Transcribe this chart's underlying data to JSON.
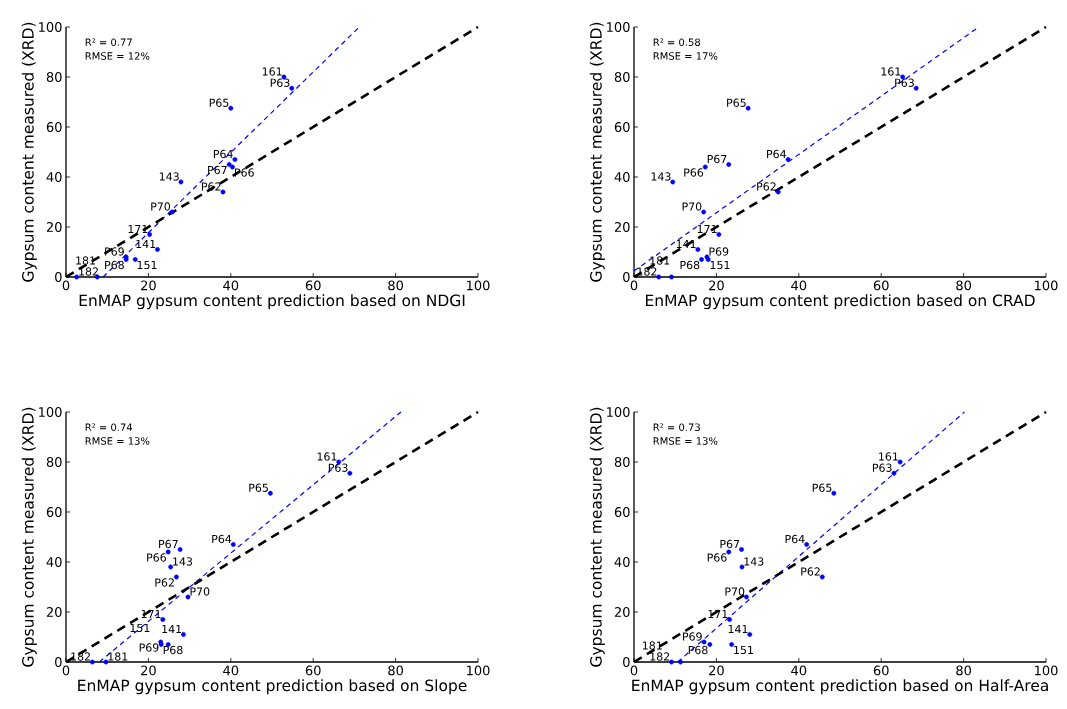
{
  "chart_data": [
    {
      "type": "scatter",
      "xlabel": "EnMAP gypsum content prediction based on NDGI",
      "ylabel": "Gypsum content measured (XRD)",
      "xlim": [
        0,
        100
      ],
      "ylim": [
        0,
        100
      ],
      "xticks": [
        0,
        20,
        40,
        60,
        80,
        100
      ],
      "yticks": [
        0,
        20,
        40,
        60,
        80,
        100
      ],
      "series": [
        {
          "type": "scatter",
          "marker": "circle",
          "color": "#0000ff",
          "x": [
            52.9,
            54.8,
            40,
            41,
            39.6,
            40.4,
            27.9,
            38.1,
            25.8,
            20.3,
            22.2,
            14.6,
            14.6,
            16.8,
            2.6,
            7.6
          ],
          "values": [
            80,
            75.5,
            67.5,
            47,
            45,
            44,
            38,
            34,
            26,
            17,
            11,
            8,
            7,
            7,
            0,
            0
          ]
        },
        {
          "type": "line",
          "line_style": "dashed",
          "color": "#0000ff",
          "x": [
            9,
            71.2
          ],
          "values": [
            0,
            100
          ]
        },
        {
          "type": "line",
          "line_style": "dashed",
          "color": "#000000",
          "x": [
            0,
            100
          ],
          "values": [
            0,
            100
          ]
        }
      ],
      "annotations": [
        "R² = 0.77",
        "RMSE = 12%",
        {
          "text": "161",
          "x": 52.9,
          "y": 80
        },
        {
          "text": "P63",
          "x": 54.8,
          "y": 75.5
        },
        {
          "text": "P65",
          "x": 40,
          "y": 67.5
        },
        {
          "text": "P64",
          "x": 41,
          "y": 47
        },
        {
          "text": "P67",
          "x": 39.6,
          "y": 45
        },
        {
          "text": "P66",
          "x": 40.4,
          "y": 44
        },
        {
          "text": "143",
          "x": 27.9,
          "y": 38
        },
        {
          "text": "P62",
          "x": 38.1,
          "y": 34
        },
        {
          "text": "P70",
          "x": 25.8,
          "y": 26
        },
        {
          "text": "171",
          "x": 20.3,
          "y": 17
        },
        {
          "text": "141",
          "x": 22.2,
          "y": 11
        },
        {
          "text": "P69",
          "x": 14.6,
          "y": 8
        },
        {
          "text": "P68",
          "x": 14.6,
          "y": 7
        },
        {
          "text": "151",
          "x": 16.8,
          "y": 7
        },
        {
          "text": "182",
          "x": 2.6,
          "y": 0
        },
        {
          "text": "181",
          "x": 7.6,
          "y": 0
        }
      ]
    },
    {
      "type": "scatter",
      "xlabel": "EnMAP gypsum content prediction based on CRAD",
      "ylabel": "Gypsum content measured (XRD)",
      "xlim": [
        0,
        100
      ],
      "ylim": [
        0,
        100
      ],
      "xticks": [
        0,
        20,
        40,
        60,
        80,
        100
      ],
      "yticks": [
        0,
        20,
        40,
        60,
        80,
        100
      ],
      "series": [
        {
          "type": "scatter",
          "marker": "circle",
          "color": "#0000ff",
          "x": [
            65.2,
            68.5,
            27.7,
            37.4,
            23,
            17.3,
            9.4,
            35,
            16.9,
            20.6,
            15.5,
            17.7,
            16.4,
            18,
            6,
            9.1
          ],
          "values": [
            80,
            75.5,
            67.5,
            47,
            45,
            44,
            38,
            34,
            26,
            17,
            11,
            8,
            7,
            7,
            0,
            0
          ]
        },
        {
          "type": "line",
          "line_style": "dashed",
          "color": "#0000ff",
          "x": [
            0,
            83.7
          ],
          "values": [
            2.4,
            100
          ]
        },
        {
          "type": "line",
          "line_style": "dashed",
          "color": "#000000",
          "x": [
            0,
            100
          ],
          "values": [
            0,
            100
          ]
        }
      ],
      "annotations": [
        "R² = 0.58",
        "RMSE = 17%",
        {
          "text": "161",
          "x": 65.2,
          "y": 80
        },
        {
          "text": "P63",
          "x": 68.5,
          "y": 75.5
        },
        {
          "text": "P65",
          "x": 27.7,
          "y": 67.5
        },
        {
          "text": "P64",
          "x": 37.4,
          "y": 47
        },
        {
          "text": "P67",
          "x": 23,
          "y": 45
        },
        {
          "text": "P66",
          "x": 17.3,
          "y": 44
        },
        {
          "text": "143",
          "x": 9.4,
          "y": 38
        },
        {
          "text": "P62",
          "x": 35,
          "y": 34
        },
        {
          "text": "P70",
          "x": 16.9,
          "y": 26
        },
        {
          "text": "171",
          "x": 20.6,
          "y": 17
        },
        {
          "text": "141",
          "x": 15.5,
          "y": 11
        },
        {
          "text": "P69",
          "x": 17.7,
          "y": 8
        },
        {
          "text": "P68",
          "x": 16.4,
          "y": 7
        },
        {
          "text": "151",
          "x": 18,
          "y": 7
        },
        {
          "text": "182",
          "x": 6,
          "y": 0
        },
        {
          "text": "181",
          "x": 9.1,
          "y": 0
        }
      ]
    },
    {
      "type": "scatter",
      "xlabel": "EnMAP gypsum content prediction based on Slope",
      "ylabel": "Gypsum content measured (XRD)",
      "xlim": [
        0,
        100
      ],
      "ylim": [
        0,
        100
      ],
      "xticks": [
        0,
        20,
        40,
        60,
        80,
        100
      ],
      "yticks": [
        0,
        20,
        40,
        60,
        80,
        100
      ],
      "series": [
        {
          "type": "scatter",
          "marker": "circle",
          "color": "#0000ff",
          "x": [
            66.2,
            68.9,
            49.6,
            40.6,
            27.7,
            24.8,
            25.4,
            26.8,
            29.6,
            23.5,
            28.5,
            23,
            23.1,
            24.8,
            6.4,
            9.7
          ],
          "values": [
            80,
            75.5,
            67.5,
            47,
            45,
            44,
            38,
            34,
            26,
            17,
            11,
            8,
            7,
            7,
            0,
            0
          ]
        },
        {
          "type": "line",
          "line_style": "dashed",
          "color": "#0000ff",
          "x": [
            8.1,
            81.3
          ],
          "values": [
            0,
            100
          ]
        },
        {
          "type": "line",
          "line_style": "dashed",
          "color": "#000000",
          "x": [
            0,
            100
          ],
          "values": [
            0,
            100
          ]
        }
      ],
      "annotations": [
        "R² = 0.74",
        "RMSE = 13%",
        {
          "text": "161",
          "x": 66.2,
          "y": 80
        },
        {
          "text": "P63",
          "x": 68.9,
          "y": 75.5
        },
        {
          "text": "P65",
          "x": 49.6,
          "y": 67.5
        },
        {
          "text": "P64",
          "x": 40.6,
          "y": 47
        },
        {
          "text": "P67",
          "x": 27.7,
          "y": 45
        },
        {
          "text": "P66",
          "x": 24.8,
          "y": 44
        },
        {
          "text": "143",
          "x": 25.4,
          "y": 38
        },
        {
          "text": "P62",
          "x": 26.8,
          "y": 34
        },
        {
          "text": "P70",
          "x": 29.6,
          "y": 26
        },
        {
          "text": "171",
          "x": 23.5,
          "y": 17
        },
        {
          "text": "141",
          "x": 28.5,
          "y": 11
        },
        {
          "text": "P69",
          "x": 23,
          "y": 8
        },
        {
          "text": "P68",
          "x": 23.1,
          "y": 7
        },
        {
          "text": "151",
          "x": 24.8,
          "y": 7
        },
        {
          "text": "182",
          "x": 6.4,
          "y": 0
        },
        {
          "text": "181",
          "x": 9.7,
          "y": 0
        }
      ]
    },
    {
      "type": "scatter",
      "xlabel": "EnMAP gypsum content prediction based on Half-Area",
      "ylabel": "Gypsum content measured (XRD)",
      "xlim": [
        0,
        100
      ],
      "ylim": [
        0,
        100
      ],
      "xticks": [
        0,
        20,
        40,
        60,
        80,
        100
      ],
      "yticks": [
        0,
        20,
        40,
        60,
        80,
        100
      ],
      "series": [
        {
          "type": "scatter",
          "marker": "circle",
          "color": "#0000ff",
          "x": [
            64.6,
            63.1,
            48.5,
            41.9,
            26.1,
            23,
            26.2,
            45.7,
            27.3,
            23.2,
            28.1,
            17,
            18.4,
            23.7,
            9.1,
            11.3
          ],
          "values": [
            80,
            75.5,
            67.5,
            47,
            45,
            44,
            38,
            34,
            26,
            17,
            11,
            8,
            7,
            7,
            0,
            0
          ]
        },
        {
          "type": "line",
          "line_style": "dashed",
          "color": "#0000ff",
          "x": [
            10.6,
            80.2
          ],
          "values": [
            0,
            100
          ]
        },
        {
          "type": "line",
          "line_style": "dashed",
          "color": "#000000",
          "x": [
            0,
            100
          ],
          "values": [
            0,
            100
          ]
        }
      ],
      "annotations": [
        "R² = 0.73",
        "RMSE = 13%",
        {
          "text": "161",
          "x": 64.6,
          "y": 80
        },
        {
          "text": "P63",
          "x": 63.1,
          "y": 75.5
        },
        {
          "text": "P65",
          "x": 48.5,
          "y": 67.5
        },
        {
          "text": "P64",
          "x": 41.9,
          "y": 47
        },
        {
          "text": "P67",
          "x": 26.1,
          "y": 45
        },
        {
          "text": "P66",
          "x": 23,
          "y": 44
        },
        {
          "text": "143",
          "x": 26.2,
          "y": 38
        },
        {
          "text": "P62",
          "x": 45.7,
          "y": 34
        },
        {
          "text": "P70",
          "x": 27.3,
          "y": 26
        },
        {
          "text": "171",
          "x": 23.2,
          "y": 17
        },
        {
          "text": "141",
          "x": 28.1,
          "y": 11
        },
        {
          "text": "P69",
          "x": 17,
          "y": 8
        },
        {
          "text": "P68",
          "x": 18.4,
          "y": 7
        },
        {
          "text": "151",
          "x": 23.7,
          "y": 7
        },
        {
          "text": "182",
          "x": 9.1,
          "y": 0
        },
        {
          "text": "181",
          "x": 11.3,
          "y": 0
        }
      ]
    }
  ]
}
